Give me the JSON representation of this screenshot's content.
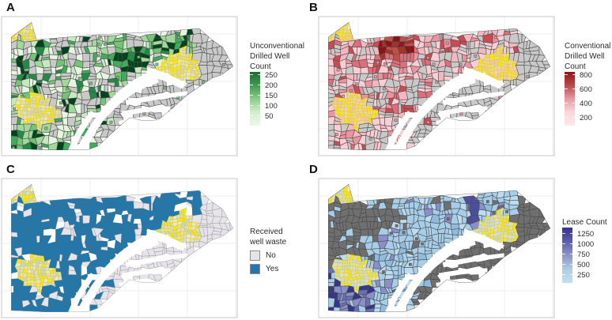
{
  "panels": [
    {
      "label": "A"
    },
    {
      "label": "B"
    },
    {
      "label": "C"
    },
    {
      "label": "D"
    }
  ],
  "legends": {
    "a": {
      "title_lines": [
        "Unconventional",
        "Drilled Well",
        "Count"
      ],
      "ticks": [
        "250",
        "200",
        "150",
        "100",
        "50"
      ],
      "gradient": [
        "#1E6A34",
        "#3F9A52",
        "#8CCB8B",
        "#D3EDCC",
        "#EDF8EA"
      ]
    },
    "b": {
      "title_lines": [
        "Conventional",
        "Drilled Well",
        "Count"
      ],
      "ticks": [
        "800",
        "600",
        "400",
        "200"
      ],
      "gradient": [
        "#8E1418",
        "#B94A4E",
        "#E79AA2",
        "#F9D7DB",
        "#FCE9EA"
      ]
    },
    "c": {
      "title_lines": [
        "Received",
        "well waste"
      ],
      "items": [
        {
          "label": "No",
          "color": "#E7E3EB"
        },
        {
          "label": "Yes",
          "color": "#2278AB"
        }
      ]
    },
    "d": {
      "title_lines": [
        "Lease Count"
      ],
      "ticks": [
        "1250",
        "1000",
        "750",
        "500",
        "250"
      ],
      "gradient": [
        "#37328E",
        "#5B5EAD",
        "#8E93C6",
        "#B0CCE2",
        "#BFE1F1"
      ]
    }
  },
  "map_style": {
    "na_gray": "#C9C9C9",
    "cell_stroke": "#4F4F4F",
    "yellow_stroke": "#E9D50A",
    "plot_border": "#D4D4D4",
    "gridline": "#EDEDED",
    "greens": [
      "#E5F5E0",
      "#C7E9C0",
      "#A1D99B",
      "#74C476",
      "#41AB5D",
      "#238B45",
      "#00441B"
    ],
    "pinks": [
      "#F8CDD3",
      "#F4B7BF",
      "#EC93A0",
      "#DE6E7A",
      "#C94C52"
    ],
    "dark_reds": [
      "#8C1218",
      "#A93226",
      "#C0504A"
    ],
    "waste_yes": "#2278AB",
    "waste_no": "#E7E3EB",
    "lease_blues": [
      "#BCDCEF",
      "#A6CEE8",
      "#8FBBDD"
    ],
    "lease_purples": [
      "#8A8FC9",
      "#6A6FB5",
      "#4B4F9E",
      "#34368C"
    ],
    "dark_gray": "#6F6F6F",
    "cluster_fills_default": [
      "#DCDCDC",
      "#D2D2D2",
      "#E8E4C8",
      "#EFE33D"
    ],
    "cluster_fills_b": [
      "#F3CDC5",
      "#EFC3B8",
      "#E8D5A8",
      "#EFE33D"
    ],
    "cluster_fills_c": [
      "#E7E3EB",
      "#BFD5E4",
      "#DCDCDC",
      "#EFE33D"
    ],
    "cluster_fills_d": [
      "#D8DCE2",
      "#C3D8EA",
      "#DCDCDC",
      "#EFE33D"
    ]
  },
  "chart_data": [
    {
      "panel": "A",
      "type": "heatmap",
      "map_type": "choropleth",
      "title": "Unconventional Drilled Well Count",
      "legend_title": "Unconventional Drilled Well Count",
      "colorbar_ticks": [
        250,
        200,
        150,
        100,
        50
      ],
      "color_scale": {
        "low": "#EDF8EA",
        "high": "#1E6A34"
      },
      "na_fill": "#C9C9C9",
      "highlighted_clusters_yellow": [
        "northwest (Erie triangle)",
        "southwest",
        "northeast"
      ],
      "pattern": "Municipality-level counts across Pennsylvania; light-to-dark green in west and north, darkest patches in north-central and southwest; gray municipalities have no unconventional wells; southeastern ridge-and-valley band entirely gray."
    },
    {
      "panel": "B",
      "type": "heatmap",
      "map_type": "choropleth",
      "title": "Conventional Drilled Well Count",
      "legend_title": "Conventional Drilled Well Count",
      "colorbar_ticks": [
        800,
        600,
        400,
        200
      ],
      "color_scale": {
        "low": "#FCE9EA",
        "high": "#8E1418"
      },
      "na_fill": "#C9C9C9",
      "highlighted_clusters_yellow": [
        "northwest (Erie triangle)",
        "southwest",
        "northeast"
      ],
      "pattern": "Pink municipalities widespread across western/northern Pennsylvania; dark-red high-count cluster in the north-central region; southeastern band gray (no conventional wells)."
    },
    {
      "panel": "C",
      "type": "heatmap",
      "map_type": "choropleth",
      "title": "Received well waste",
      "legend_title": "Received well waste",
      "categories": [
        "No",
        "Yes"
      ],
      "category_colors": [
        "#E7E3EB",
        "#2278AB"
      ],
      "highlighted_clusters_yellow": [
        "northwest (Erie triangle)",
        "southwest",
        "northeast"
      ],
      "pattern": "Most western and northern municipalities received well waste (Yes, blue) with scattered No municipalities; southeastern band almost entirely No (light lavender-gray)."
    },
    {
      "panel": "D",
      "type": "heatmap",
      "map_type": "choropleth",
      "title": "Lease Count",
      "legend_title": "Lease Count",
      "colorbar_ticks": [
        1250,
        1000,
        750,
        500,
        250
      ],
      "color_scale": {
        "low": "#BFE1F1",
        "high": "#37328E"
      },
      "na_fill": "#6F6F6F",
      "highlighted_clusters_yellow": [
        "northwest (Erie triangle)",
        "southwest",
        "northeast"
      ],
      "pattern": "Light-blue lease counts across the central band; darker blue-purple clusters in the southwest and scattered in the northeast; northwest corner and southeastern band dark gray (no data)."
    }
  ]
}
